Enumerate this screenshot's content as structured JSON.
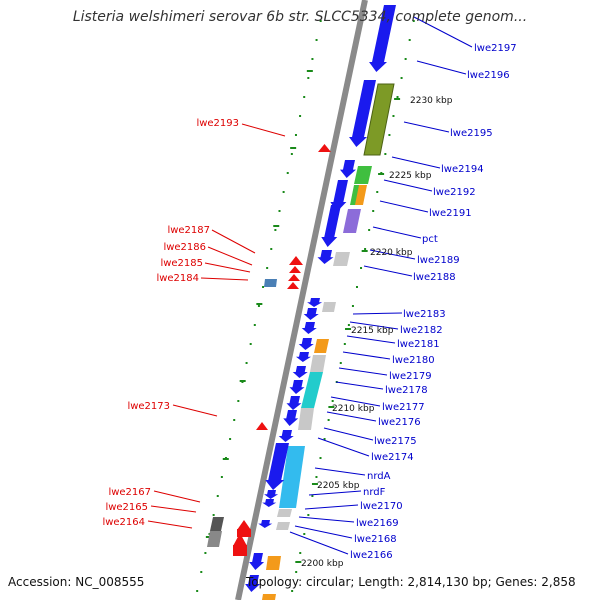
{
  "title": "Listeria welshimeri serovar 6b str. SLCC5334, complete genom...",
  "footer": {
    "accession": "Accession: NC_008555",
    "topology": "Topology: circular; Length: 2,814,130 bp; Genes: 2,858"
  },
  "colors": {
    "forward_label": "#0000cc",
    "reverse_label": "#dd0000",
    "forward_gene": "#1a1aee",
    "reverse_gene": "#ee1111",
    "backbone": "#8a8a8a",
    "tick": "#1a8a1a"
  },
  "scale_labels": [
    "2230 kbp",
    "2225 kbp",
    "2220 kbp",
    "2215 kbp",
    "2210 kbp",
    "2205 kbp",
    "2200 kbp"
  ],
  "right_labels": [
    "lwe2197",
    "lwe2196",
    "lwe2195",
    "lwe2194",
    "lwe2192",
    "lwe2191",
    "pct",
    "lwe2189",
    "lwe2188",
    "lwe2183",
    "lwe2182",
    "lwe2181",
    "lwe2180",
    "lwe2179",
    "lwe2178",
    "lwe2177",
    "lwe2176",
    "lwe2175",
    "lwe2174",
    "nrdA",
    "nrdF",
    "lwe2170",
    "lwe2169",
    "lwe2168",
    "lwe2166"
  ],
  "left_labels": [
    "lwe2193",
    "lwe2187",
    "lwe2186",
    "lwe2185",
    "lwe2184",
    "lwe2173",
    "lwe2167",
    "lwe2165",
    "lwe2164"
  ]
}
